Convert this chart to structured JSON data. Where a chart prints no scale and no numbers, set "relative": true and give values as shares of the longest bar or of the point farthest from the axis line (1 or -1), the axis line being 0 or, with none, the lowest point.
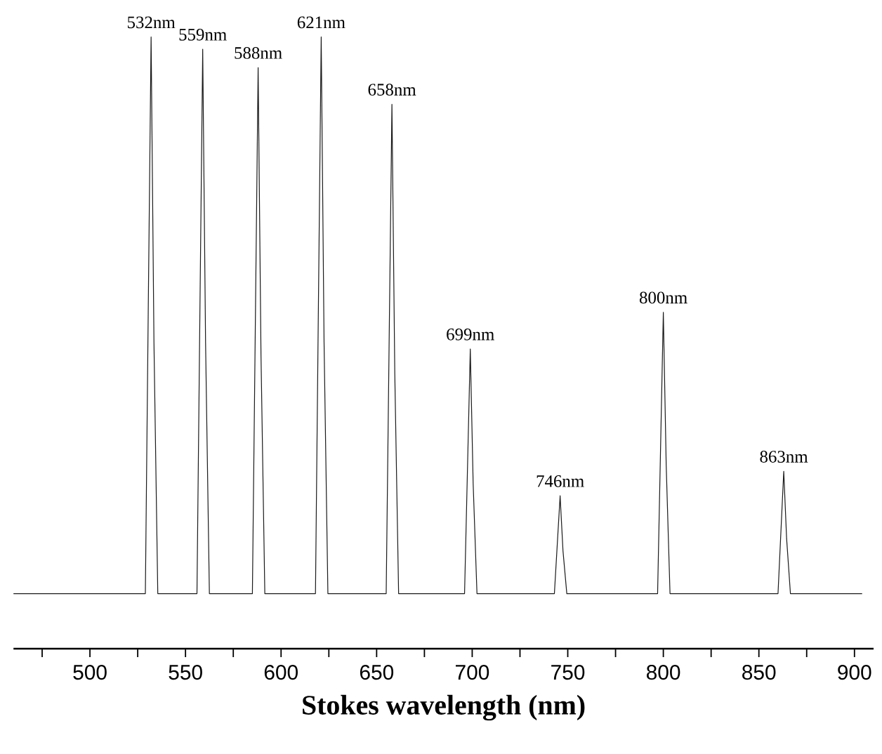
{
  "chart_data": {
    "type": "line",
    "relative": true,
    "xlabel": "Stokes wavelength (nm)",
    "xlim": [
      460,
      910
    ],
    "xticks": [
      {
        "value": 475,
        "label": null
      },
      500,
      {
        "value": 525,
        "label": null
      },
      550,
      {
        "value": 575,
        "label": null
      },
      600,
      {
        "value": 625,
        "label": null
      },
      650,
      {
        "value": 675,
        "label": null
      },
      700,
      {
        "value": 725,
        "label": null
      },
      750,
      {
        "value": 775,
        "label": null
      },
      800,
      {
        "value": 825,
        "label": null
      },
      850,
      {
        "value": 875,
        "label": null
      },
      900
    ],
    "series": [
      {
        "color": "#1a1a1a",
        "x": [
          460,
          529,
          530.5,
          532,
          533.5,
          535.5,
          556,
          557.5,
          559,
          560.5,
          562.5,
          585,
          586.5,
          588,
          589.5,
          591.5,
          618,
          619.5,
          621,
          622.5,
          624.5,
          655,
          656.5,
          658,
          659.5,
          661.5,
          696,
          697.5,
          699,
          700.5,
          702.5,
          743,
          744.5,
          746,
          747.5,
          749.5,
          797,
          798.5,
          800,
          801.5,
          803.5,
          860,
          861.5,
          863,
          864.5,
          866.5,
          904
        ],
        "values": [
          0.09,
          0.09,
          0.55,
          1.0,
          0.5,
          0.09,
          0.09,
          0.54,
          0.98,
          0.5,
          0.09,
          0.09,
          0.52,
          0.95,
          0.48,
          0.09,
          0.09,
          0.55,
          1.0,
          0.5,
          0.09,
          0.09,
          0.49,
          0.89,
          0.45,
          0.09,
          0.09,
          0.29,
          0.49,
          0.27,
          0.09,
          0.09,
          0.17,
          0.25,
          0.16,
          0.09,
          0.09,
          0.32,
          0.55,
          0.3,
          0.09,
          0.09,
          0.19,
          0.29,
          0.18,
          0.09,
          0.09
        ]
      }
    ],
    "annotations": [
      {
        "text": "532nm",
        "x": 532,
        "y": 1.0
      },
      {
        "text": "559nm",
        "x": 559,
        "y": 0.98
      },
      {
        "text": "588nm",
        "x": 588,
        "y": 0.95
      },
      {
        "text": "621nm",
        "x": 621,
        "y": 1.0
      },
      {
        "text": "658nm",
        "x": 658,
        "y": 0.89
      },
      {
        "text": "699nm",
        "x": 699,
        "y": 0.49
      },
      {
        "text": "746nm",
        "x": 746,
        "y": 0.25
      },
      {
        "text": "800nm",
        "x": 800,
        "y": 0.55
      },
      {
        "text": "863nm",
        "x": 863,
        "y": 0.29
      }
    ],
    "grid": false,
    "marker": "none",
    "line_style": "solid"
  }
}
